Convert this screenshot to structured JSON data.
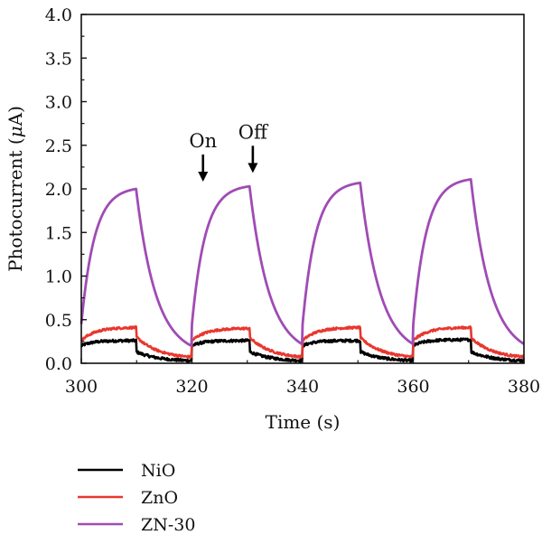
{
  "chart_data": {
    "type": "line",
    "title": "",
    "xlabel": "Time (s)",
    "ylabel_prefix": "Photocurrent (",
    "ylabel_mu": "μ",
    "ylabel_suffix": "A)",
    "xlim": [
      300,
      380
    ],
    "ylim": [
      0,
      4.0
    ],
    "xticks": [
      300,
      320,
      340,
      360,
      380
    ],
    "xtick_labels": [
      "300",
      "320",
      "340",
      "360",
      "380"
    ],
    "yticks": [
      0,
      0.5,
      1.0,
      1.5,
      2.0,
      2.5,
      3.0,
      3.5,
      4.0
    ],
    "ytick_labels": [
      "0.0",
      "0.5",
      "1.0",
      "1.5",
      "2.0",
      "2.5",
      "3.0",
      "3.5",
      "4.0"
    ],
    "grid": false,
    "legend_position": "bottom-left, below plot",
    "annotations": [
      {
        "text": "On",
        "x": 322,
        "y_arrow_tip": 2.0
      },
      {
        "text": "Off",
        "x": 331,
        "y_arrow_tip": 2.1
      }
    ],
    "cycles": {
      "on_times": [
        300,
        320,
        340,
        360
      ],
      "off_times": [
        310,
        330.5,
        350.5,
        370.5
      ]
    },
    "series": [
      {
        "name": "NiO",
        "color": "#000000",
        "base": 0.02,
        "on_start": [
          0.2,
          0.2,
          0.2,
          0.2
        ],
        "on_peak": [
          0.26,
          0.26,
          0.26,
          0.27
        ],
        "tau_rise": 2,
        "after_drop": [
          0.13,
          0.13,
          0.13,
          0.13
        ],
        "tau_decay": 4,
        "noise": 0.015
      },
      {
        "name": "ZnO",
        "color": "#e8372e",
        "base": 0.05,
        "on_start": [
          0.26,
          0.26,
          0.26,
          0.26
        ],
        "on_peak": [
          0.41,
          0.4,
          0.41,
          0.41
        ],
        "tau_rise": 2.5,
        "after_drop": [
          0.3,
          0.29,
          0.29,
          0.29
        ],
        "tau_decay": 4,
        "noise": 0.012
      },
      {
        "name": "ZN-30",
        "color": "#a04bb5",
        "base": 0.08,
        "on_start": [
          0.45,
          0.45,
          0.45,
          0.45
        ],
        "on_peak": [
          2.0,
          2.03,
          2.07,
          2.11
        ],
        "tau_rise": 2.4,
        "after_drop": [
          1.95,
          1.98,
          2.02,
          2.06
        ],
        "tau_decay": 3.6,
        "noise": 0.0
      }
    ]
  }
}
